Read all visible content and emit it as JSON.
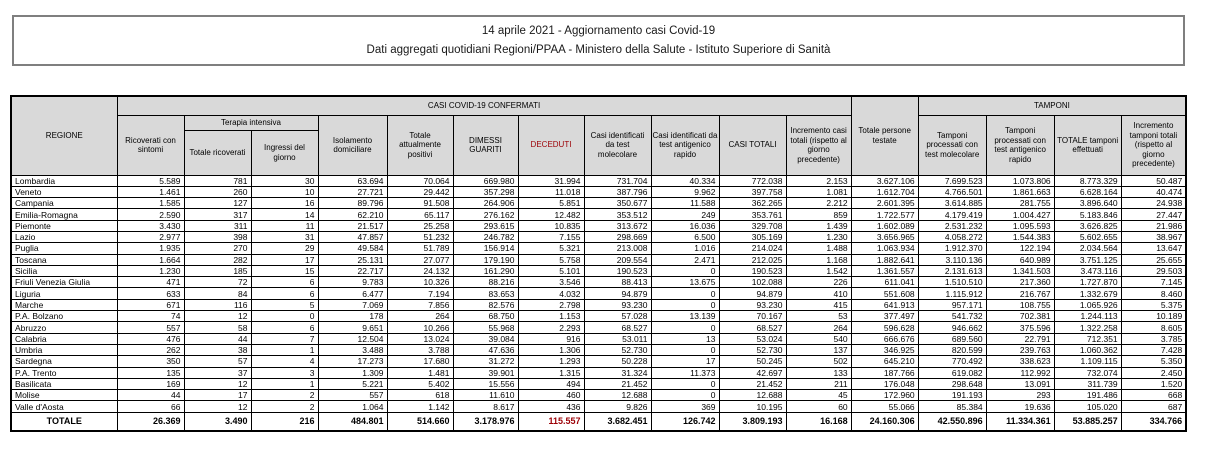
{
  "title": {
    "line1": "14 aprile 2021 - Aggiornamento casi Covid-19",
    "line2": "Dati aggregati quotidiani Regioni/PPAA - Ministero della Salute - Istituto Superiore di Sanità"
  },
  "colors": {
    "header_dark_gray": "#a6a6a6",
    "header_light_gray": "#d9d9d9",
    "green_recovered": "#00b050",
    "red_deceased": "#ff0000",
    "dark_red_text": "#9c0006",
    "yellow_cases": "#ffc000",
    "cyan_tested": "#00b0f0",
    "light_blue_swabs": "#bdd7ee",
    "grid_border": "#000000"
  },
  "table": {
    "group_headers": {
      "confermati": "CASI COVID-19 CONFERMATI",
      "tamponi": "TAMPONI",
      "terapia": "Terapia intensiva"
    },
    "headers": {
      "regione": "REGIONE",
      "ricoverati": "Ricoverati con sintomi",
      "ti_totale": "Totale ricoverati",
      "ti_ingressi": "Ingressi del giorno",
      "isolamento": "Isolamento domiciliare",
      "attualmente_positivi": "Totale attualmente positivi",
      "dimessi": "DIMESSI GUARITI",
      "deceduti": "DECEDUTI",
      "casi_molecolare": "Casi identificati da test molecolare",
      "casi_antigenico": "Casi identificati da test antigenico rapido",
      "casi_totali": "CASI TOTALI",
      "incremento_casi": "Incremento casi totali (rispetto al giorno precedente)",
      "persone_testate": "Totale persone testate",
      "tamponi_molecolare": "Tamponi processati con test molecolare",
      "tamponi_antigenico": "Tamponi processati con test antigenico rapido",
      "tamponi_totale": "TOTALE tamponi effettuati",
      "incremento_tamponi": "Incremento tamponi totali (rispetto al giorno precedente)"
    },
    "rows": [
      [
        "Lombardia",
        "5.589",
        "781",
        "30",
        "63.694",
        "70.064",
        "669.980",
        "31.994",
        "731.704",
        "40.334",
        "772.038",
        "2.153",
        "3.627.106",
        "7.699.523",
        "1.073.806",
        "8.773.329",
        "50.487"
      ],
      [
        "Veneto",
        "1.461",
        "260",
        "10",
        "27.721",
        "29.442",
        "357.298",
        "11.018",
        "387.796",
        "9.962",
        "397.758",
        "1.081",
        "1.612.704",
        "4.766.501",
        "1.861.663",
        "6.628.164",
        "40.474"
      ],
      [
        "Campania",
        "1.585",
        "127",
        "16",
        "89.796",
        "91.508",
        "264.906",
        "5.851",
        "350.677",
        "11.588",
        "362.265",
        "2.212",
        "2.601.395",
        "3.614.885",
        "281.755",
        "3.896.640",
        "24.938"
      ],
      [
        "Emilia-Romagna",
        "2.590",
        "317",
        "14",
        "62.210",
        "65.117",
        "276.162",
        "12.482",
        "353.512",
        "249",
        "353.761",
        "859",
        "1.722.577",
        "4.179.419",
        "1.004.427",
        "5.183.846",
        "27.447"
      ],
      [
        "Piemonte",
        "3.430",
        "311",
        "11",
        "21.517",
        "25.258",
        "293.615",
        "10.835",
        "313.672",
        "16.036",
        "329.708",
        "1.439",
        "1.602.089",
        "2.531.232",
        "1.095.593",
        "3.626.825",
        "21.986"
      ],
      [
        "Lazio",
        "2.977",
        "398",
        "31",
        "47.857",
        "51.232",
        "246.782",
        "7.155",
        "298.669",
        "6.500",
        "305.169",
        "1.230",
        "3.656.965",
        "4.058.272",
        "1.544.383",
        "5.602.655",
        "38.967"
      ],
      [
        "Puglia",
        "1.935",
        "270",
        "29",
        "49.584",
        "51.789",
        "156.914",
        "5.321",
        "213.008",
        "1.016",
        "214.024",
        "1.488",
        "1.063.934",
        "1.912.370",
        "122.194",
        "2.034.564",
        "13.647"
      ],
      [
        "Toscana",
        "1.664",
        "282",
        "17",
        "25.131",
        "27.077",
        "179.190",
        "5.758",
        "209.554",
        "2.471",
        "212.025",
        "1.168",
        "1.882.641",
        "3.110.136",
        "640.989",
        "3.751.125",
        "25.655"
      ],
      [
        "Sicilia",
        "1.230",
        "185",
        "15",
        "22.717",
        "24.132",
        "161.290",
        "5.101",
        "190.523",
        "0",
        "190.523",
        "1.542",
        "1.361.557",
        "2.131.613",
        "1.341.503",
        "3.473.116",
        "29.503"
      ],
      [
        "Friuli Venezia Giulia",
        "471",
        "72",
        "6",
        "9.783",
        "10.326",
        "88.216",
        "3.546",
        "88.413",
        "13.675",
        "102.088",
        "226",
        "611.041",
        "1.510.510",
        "217.360",
        "1.727.870",
        "7.145"
      ],
      [
        "Liguria",
        "633",
        "84",
        "6",
        "6.477",
        "7.194",
        "83.653",
        "4.032",
        "94.879",
        "0",
        "94.879",
        "410",
        "551.608",
        "1.115.912",
        "216.767",
        "1.332.679",
        "8.460"
      ],
      [
        "Marche",
        "671",
        "116",
        "5",
        "7.069",
        "7.856",
        "82.576",
        "2.798",
        "93.230",
        "0",
        "93.230",
        "415",
        "641.913",
        "957.171",
        "108.755",
        "1.065.926",
        "5.375"
      ],
      [
        "P.A. Bolzano",
        "74",
        "12",
        "0",
        "178",
        "264",
        "68.750",
        "1.153",
        "57.028",
        "13.139",
        "70.167",
        "53",
        "377.497",
        "541.732",
        "702.381",
        "1.244.113",
        "10.189"
      ],
      [
        "Abruzzo",
        "557",
        "58",
        "6",
        "9.651",
        "10.266",
        "55.968",
        "2.293",
        "68.527",
        "0",
        "68.527",
        "264",
        "596.628",
        "946.662",
        "375.596",
        "1.322.258",
        "8.605"
      ],
      [
        "Calabria",
        "476",
        "44",
        "7",
        "12.504",
        "13.024",
        "39.084",
        "916",
        "53.011",
        "13",
        "53.024",
        "540",
        "666.676",
        "689.560",
        "22.791",
        "712.351",
        "3.785"
      ],
      [
        "Umbria",
        "262",
        "38",
        "1",
        "3.488",
        "3.788",
        "47.636",
        "1.306",
        "52.730",
        "0",
        "52.730",
        "137",
        "346.925",
        "820.599",
        "239.763",
        "1.060.362",
        "7.428"
      ],
      [
        "Sardegna",
        "350",
        "57",
        "4",
        "17.273",
        "17.680",
        "31.272",
        "1.293",
        "50.228",
        "17",
        "50.245",
        "502",
        "645.210",
        "770.492",
        "338.623",
        "1.109.115",
        "5.350"
      ],
      [
        "P.A. Trento",
        "135",
        "37",
        "3",
        "1.309",
        "1.481",
        "39.901",
        "1.315",
        "31.324",
        "11.373",
        "42.697",
        "133",
        "187.766",
        "619.082",
        "112.992",
        "732.074",
        "2.450"
      ],
      [
        "Basilicata",
        "169",
        "12",
        "1",
        "5.221",
        "5.402",
        "15.556",
        "494",
        "21.452",
        "0",
        "21.452",
        "211",
        "176.048",
        "298.648",
        "13.091",
        "311.739",
        "1.520"
      ],
      [
        "Molise",
        "44",
        "17",
        "2",
        "557",
        "618",
        "11.610",
        "460",
        "12.688",
        "0",
        "12.688",
        "45",
        "172.960",
        "191.193",
        "293",
        "191.486",
        "668"
      ],
      [
        "Valle d'Aosta",
        "66",
        "12",
        "2",
        "1.064",
        "1.142",
        "8.617",
        "436",
        "9.826",
        "369",
        "10.195",
        "60",
        "55.066",
        "85.384",
        "19.636",
        "105.020",
        "687"
      ]
    ],
    "total_label": "TOTALE",
    "total": [
      "26.369",
      "3.490",
      "216",
      "484.801",
      "514.660",
      "3.178.976",
      "115.557",
      "3.682.451",
      "126.742",
      "3.809.193",
      "16.168",
      "24.160.306",
      "42.550.896",
      "11.334.361",
      "53.885.257",
      "334.766"
    ]
  }
}
